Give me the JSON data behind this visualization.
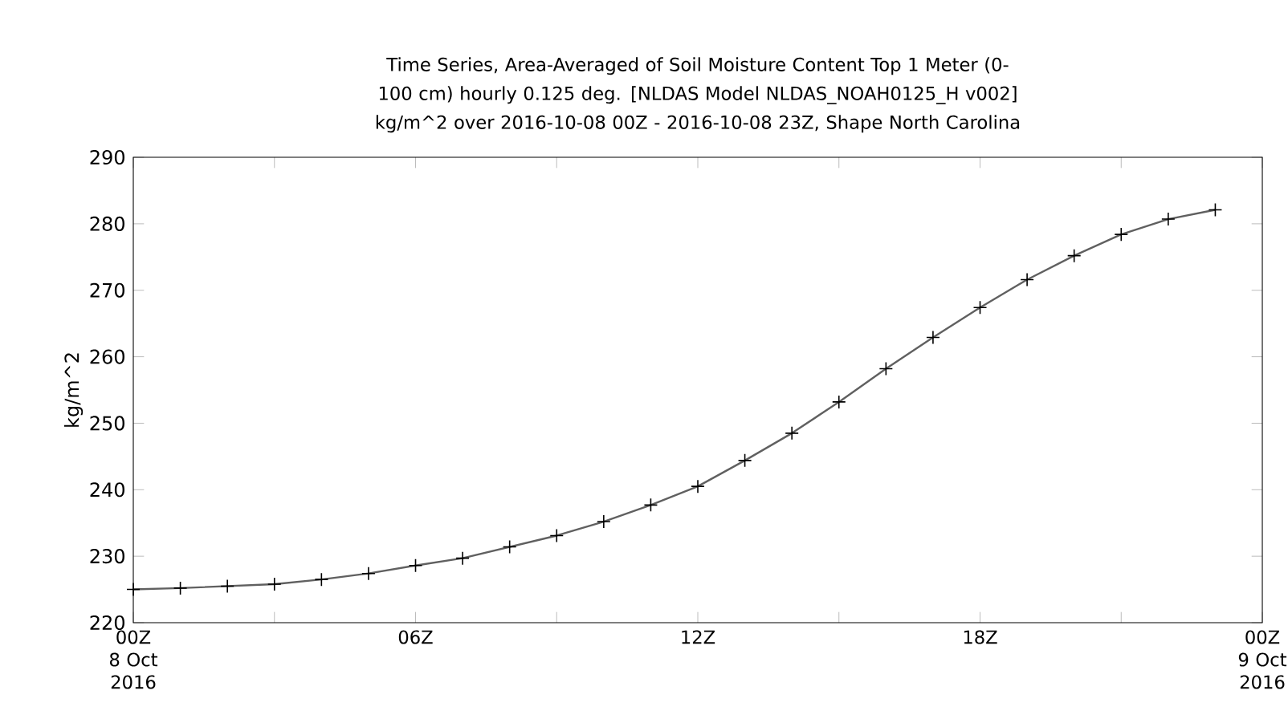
{
  "chart_data": {
    "type": "line",
    "title": "Time Series, Area-Averaged of Soil Moisture Content Top 1 Meter (0-100 cm) hourly 0.125 deg. [NLDAS Model NLDAS_NOAH0125_H v002] kg/m^2 over 2016-10-08 00Z - 2016-10-08 23Z, Shape North Carolina",
    "ylabel": "kg/m^2",
    "x": [
      0,
      1,
      2,
      3,
      4,
      5,
      6,
      7,
      8,
      9,
      10,
      11,
      12,
      13,
      14,
      15,
      16,
      17,
      18,
      19,
      20,
      21,
      22,
      23
    ],
    "series": [
      {
        "color": "#606060",
        "values": [
          225.0,
          225.2,
          225.5,
          225.8,
          226.5,
          227.4,
          228.6,
          229.7,
          231.4,
          233.1,
          235.2,
          237.7,
          240.5,
          244.4,
          248.5,
          253.2,
          258.2,
          262.9,
          267.4,
          271.6,
          275.2,
          278.4,
          280.7,
          282.1
        ]
      }
    ],
    "xlim": [
      0,
      24
    ],
    "xticks": [
      {
        "value": 0,
        "label": "00Z 8 Oct 2016"
      },
      {
        "value": 3,
        "label": null
      },
      {
        "value": 6,
        "label": "06Z"
      },
      {
        "value": 9,
        "label": null
      },
      {
        "value": 12,
        "label": "12Z"
      },
      {
        "value": 15,
        "label": null
      },
      {
        "value": 18,
        "label": "18Z"
      },
      {
        "value": 21,
        "label": null
      },
      {
        "value": 24,
        "label": "00Z 9 Oct 2016"
      }
    ],
    "ylim": [
      220,
      290
    ],
    "yticks": [
      220,
      230,
      240,
      250,
      260,
      270,
      280,
      290
    ],
    "marker": "cross",
    "line_style": "solid",
    "grid": false
  }
}
